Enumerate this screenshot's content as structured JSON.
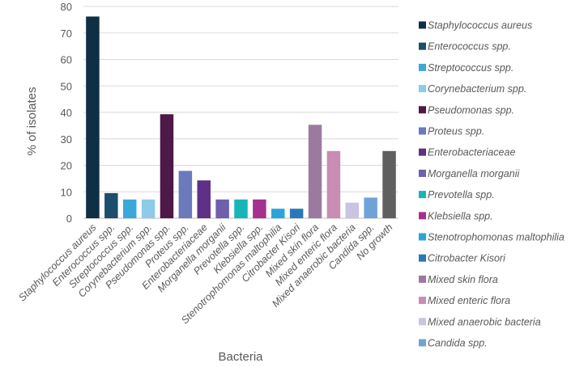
{
  "chart_data": {
    "type": "bar",
    "title": "",
    "xlabel": "Bacteria",
    "ylabel": "% of isolates",
    "ylim": [
      0,
      80
    ],
    "yticks": [
      0,
      10,
      20,
      30,
      40,
      50,
      60,
      70,
      80
    ],
    "grid": true,
    "legend_position": "right",
    "categories": [
      "Staphylococcus aureus",
      "Enterococcus spp.",
      "Streptococcus spp.",
      "Corynebacterium spp.",
      "Pseudomonas spp.",
      "Proteus spp.",
      "Enterobacteriaceae",
      "Morganella morganii",
      "Prevotella spp.",
      "Klebsiella spp.",
      "Stenotrophomonas maltophilia",
      "Citrobacter Kisori",
      "Mixed skin flora",
      "Mixed enteric flora",
      "Mixed anaerobic bacteria",
      "Candida spp.",
      "No growth"
    ],
    "values": [
      76.2,
      9.5,
      7.1,
      7.1,
      39.3,
      17.9,
      14.3,
      7.1,
      7.1,
      7.1,
      3.6,
      3.6,
      35.3,
      25.4,
      5.9,
      7.8,
      25.4
    ],
    "colors": [
      "#0e2f44",
      "#1b4f6b",
      "#3aa9d9",
      "#8dcbe8",
      "#4e1848",
      "#6b79bd",
      "#5e3088",
      "#6f5fad",
      "#17b5b8",
      "#a6308f",
      "#2aa5d9",
      "#2a78ba",
      "#9c7aa0",
      "#c98cb3",
      "#c9c4e1",
      "#6fa3d8",
      "#5f5f5f"
    ],
    "legend": [
      "Staphylococcus aureus",
      "Enterococcus spp.",
      "Streptococcus spp.",
      "Corynebacterium spp.",
      "Pseudomonas spp.",
      "Proteus spp.",
      "Enterobacteriaceae",
      "Morganella morganii",
      "Prevotella spp.",
      "Klebsiella spp.",
      "Stenotrophomonas maltophilia",
      "Citrobacter Kisori",
      "Mixed skin flora",
      "Mixed enteric flora",
      "Mixed anaerobic bacteria",
      "Candida spp."
    ]
  }
}
